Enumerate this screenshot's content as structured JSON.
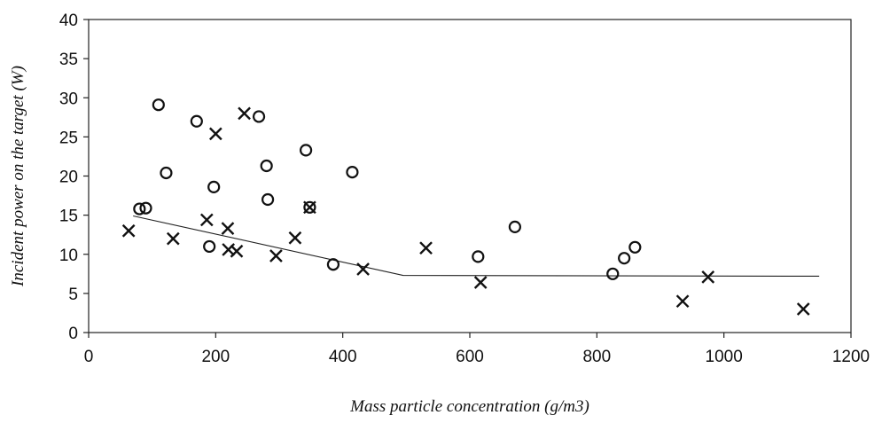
{
  "chart_data": {
    "type": "scatter",
    "xlabel": "Mass particle concentration (g/m3)",
    "ylabel": "Incident power on the target (W)",
    "xlim": [
      0,
      1200
    ],
    "ylim": [
      0,
      40
    ],
    "x_ticks": [
      "0",
      "200",
      "400",
      "600",
      "800",
      "1000",
      "1200"
    ],
    "y_ticks": [
      "0",
      "5",
      "10",
      "15",
      "20",
      "25",
      "30",
      "35",
      "40"
    ],
    "grid": false,
    "series": [
      {
        "marker": "circle",
        "points": [
          [
            80,
            15.8
          ],
          [
            90,
            15.9
          ],
          [
            110,
            29.1
          ],
          [
            122,
            20.4
          ],
          [
            170,
            27.0
          ],
          [
            190,
            11.0
          ],
          [
            197,
            18.6
          ],
          [
            268,
            27.6
          ],
          [
            280,
            21.3
          ],
          [
            282,
            17.0
          ],
          [
            342,
            23.3
          ],
          [
            348,
            16.0
          ],
          [
            385,
            8.7
          ],
          [
            415,
            20.5
          ],
          [
            613,
            9.7
          ],
          [
            671,
            13.5
          ],
          [
            825,
            7.5
          ],
          [
            843,
            9.5
          ],
          [
            860,
            10.9
          ]
        ]
      },
      {
        "marker": "cross",
        "points": [
          [
            63,
            13.0
          ],
          [
            133,
            12.0
          ],
          [
            186,
            14.4
          ],
          [
            200,
            25.4
          ],
          [
            219,
            13.3
          ],
          [
            220,
            10.6
          ],
          [
            233,
            10.4
          ],
          [
            245,
            28.0
          ],
          [
            295,
            9.8
          ],
          [
            325,
            12.1
          ],
          [
            348,
            16.0
          ],
          [
            432,
            8.1
          ],
          [
            531,
            10.8
          ],
          [
            617,
            6.4
          ],
          [
            935,
            4.0
          ],
          [
            975,
            7.1
          ],
          [
            1125,
            3.0
          ]
        ]
      }
    ],
    "trend_line": [
      [
        70,
        14.9
      ],
      [
        495,
        7.3
      ],
      [
        1150,
        7.2
      ]
    ]
  }
}
